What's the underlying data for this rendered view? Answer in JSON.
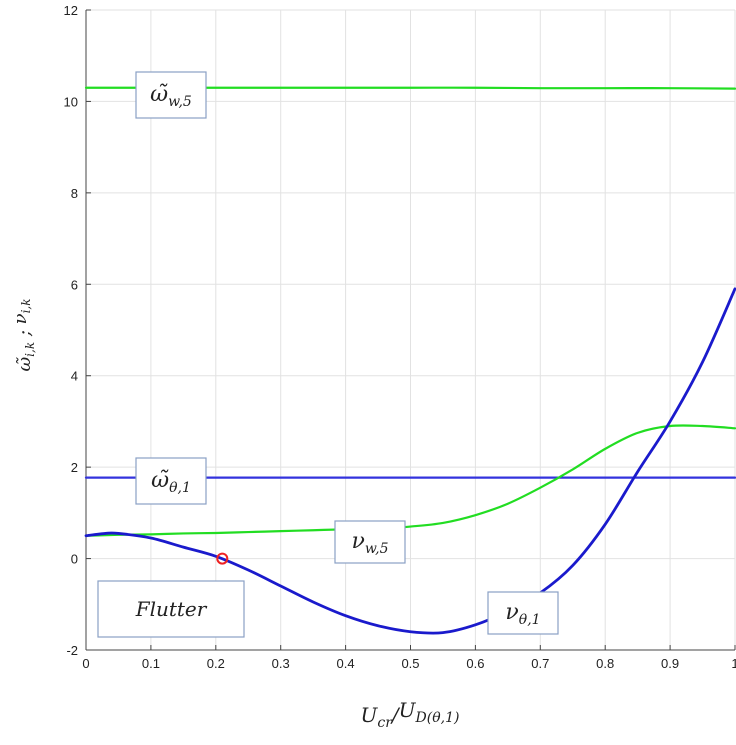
{
  "chart_data": {
    "type": "line",
    "xlabel": "U_cr/U_D(θ,1)",
    "ylabel": "ω̃_i,k ; ν_i,k",
    "xlim": [
      0,
      1
    ],
    "ylim": [
      -2,
      12
    ],
    "x_ticks": [
      "0",
      "0.1",
      "0.2",
      "0.3",
      "0.4",
      "0.5",
      "0.6",
      "0.7",
      "0.8",
      "0.9",
      "1"
    ],
    "y_ticks": [
      "-2",
      "0",
      "2",
      "4",
      "6",
      "8",
      "10",
      "12"
    ],
    "grid": true,
    "series": [
      {
        "name": "ω̃_w,5",
        "color": "#22dd22",
        "x": [
          0,
          0.1,
          0.2,
          0.3,
          0.4,
          0.5,
          0.6,
          0.7,
          0.8,
          0.9,
          1.0
        ],
        "y": [
          10.3,
          10.3,
          10.3,
          10.3,
          10.3,
          10.3,
          10.3,
          10.29,
          10.29,
          10.29,
          10.28
        ]
      },
      {
        "name": "ω̃_θ,1",
        "color": "#3333dd",
        "x": [
          0,
          0.2,
          0.4,
          0.6,
          0.8,
          1.0
        ],
        "y": [
          1.77,
          1.77,
          1.77,
          1.77,
          1.77,
          1.77
        ]
      },
      {
        "name": "ν_w,5",
        "color": "#22dd22",
        "x": [
          0,
          0.05,
          0.1,
          0.15,
          0.2,
          0.25,
          0.3,
          0.35,
          0.4,
          0.45,
          0.5,
          0.55,
          0.6,
          0.65,
          0.7,
          0.75,
          0.8,
          0.85,
          0.9,
          0.95,
          1.0
        ],
        "y": [
          0.5,
          0.52,
          0.53,
          0.55,
          0.56,
          0.58,
          0.6,
          0.62,
          0.64,
          0.65,
          0.7,
          0.78,
          0.95,
          1.2,
          1.55,
          1.95,
          2.4,
          2.75,
          2.9,
          2.9,
          2.85
        ]
      },
      {
        "name": "ν_θ,1",
        "color": "#1a1acc",
        "x": [
          0,
          0.03,
          0.05,
          0.1,
          0.15,
          0.2,
          0.25,
          0.3,
          0.35,
          0.4,
          0.45,
          0.5,
          0.55,
          0.6,
          0.65,
          0.7,
          0.75,
          0.8,
          0.85,
          0.9,
          0.95,
          1.0
        ],
        "y": [
          0.5,
          0.55,
          0.55,
          0.45,
          0.25,
          0.05,
          -0.25,
          -0.6,
          -0.95,
          -1.25,
          -1.47,
          -1.6,
          -1.62,
          -1.45,
          -1.15,
          -0.75,
          -0.15,
          0.75,
          1.9,
          3.0,
          4.3,
          5.9
        ]
      }
    ],
    "marker": {
      "x": 0.21,
      "y": 0.0,
      "color": "#ee2222"
    },
    "annotations": [
      {
        "text": "ω̃_w,5",
        "series_ref": 0
      },
      {
        "text": "ω̃_θ,1",
        "series_ref": 1
      },
      {
        "text": "ν_w,5",
        "series_ref": 2
      },
      {
        "text": "ν_θ,1",
        "series_ref": 3
      },
      {
        "text": "Flutter"
      }
    ]
  }
}
